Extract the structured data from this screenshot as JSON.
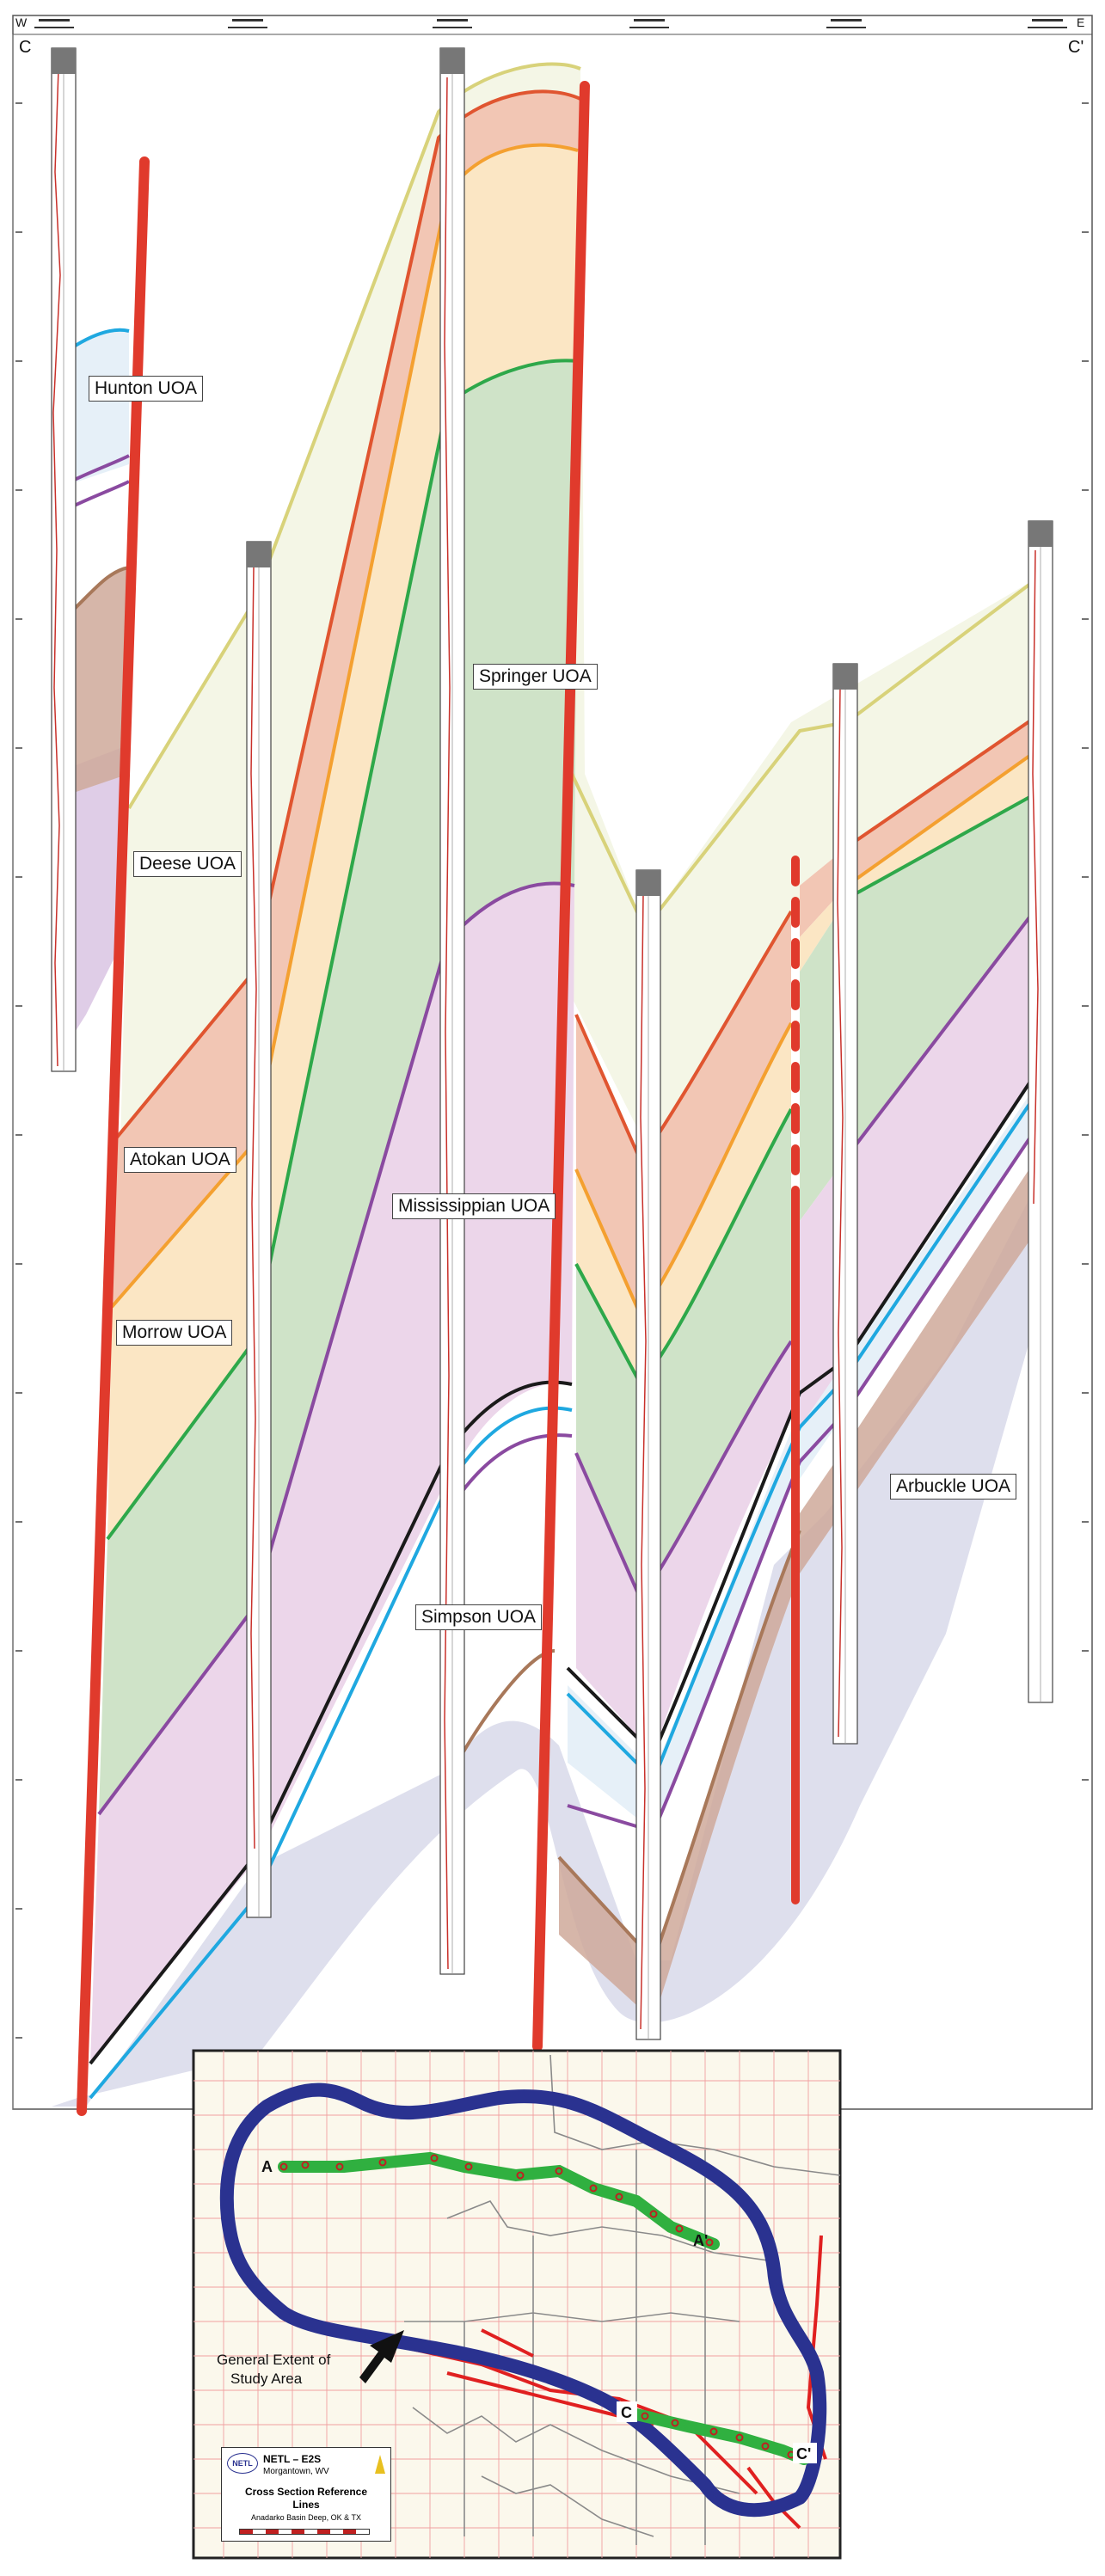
{
  "section": {
    "west_label": "W",
    "east_label": "E",
    "left_label": "C",
    "right_label": "C'"
  },
  "units": [
    {
      "name": "Hunton UOA",
      "color": "#e6f0f8"
    },
    {
      "name": "Springer UOA",
      "color": "#f0f4e2"
    },
    {
      "name": "Deese UOA",
      "color": "#f6f8ea"
    },
    {
      "name": "Atokan UOA",
      "color": "#f2c6b4"
    },
    {
      "name": "Mississippian UOA",
      "color": "#ecd6ea"
    },
    {
      "name": "Morrow UOA",
      "color": "#fbe6c4"
    },
    {
      "name": "Arbuckle UOA",
      "color": "#d8d9ea"
    },
    {
      "name": "Simpson UOA",
      "color": "#ffffff"
    }
  ],
  "colors": {
    "fault": "#e03a2c",
    "deese_top": "#d8d27a",
    "atokan_top": "#e05530",
    "morrow_top": "#f4a030",
    "springer_top": "#2ea84a",
    "miss_top": "#8a4aa0",
    "hunton_top": "#1fa8e0",
    "simpson_top": "#1a1a1a",
    "arbuckle_top": "#a8785a",
    "study_area": "#2a3290",
    "section_line": "#30b040"
  },
  "map": {
    "point_a": "A",
    "point_a_prime": "A'",
    "point_c": "C",
    "point_c_prime": "C'",
    "study_area_note": [
      "General Extent of",
      "Study Area"
    ],
    "legend": {
      "org": "NETL – E2S",
      "location": "Morgantown, WV",
      "title_line1": "Cross Section Reference",
      "title_line2": "Lines",
      "subtitle": "Anadarko Basin Deep, OK & TX"
    }
  }
}
